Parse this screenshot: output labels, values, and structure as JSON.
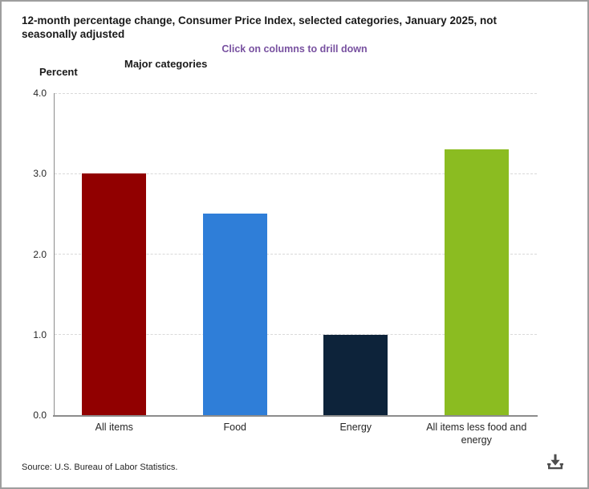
{
  "header": {
    "title": "12-month percentage change, Consumer Price Index, selected categories, January 2025, not seasonally adjusted",
    "subtitle": "Click on columns to drill down"
  },
  "axis": {
    "x_title": "Major categories",
    "y_title": "Percent"
  },
  "footer": {
    "source": "Source: U.S. Bureau of Labor Statistics."
  },
  "icons": {
    "download": "download-icon"
  },
  "colors": {
    "subtitle_text": "#7851a0",
    "axis_line": "#8c8c8c",
    "gridline": "#d9d9d9",
    "title_text": "#1a1a1a",
    "icon": "#4d4d4d",
    "panel_border": "#9e9e9e"
  },
  "chart_data": {
    "type": "bar",
    "title": "12-month percentage change, Consumer Price Index, selected categories, January 2025, not seasonally adjusted",
    "subtitle": "Click on columns to drill down",
    "xlabel": "Major categories",
    "ylabel": "Percent",
    "categories": [
      "All items",
      "Food",
      "Energy",
      "All items less food and energy"
    ],
    "values": [
      3.0,
      2.5,
      1.0,
      3.3
    ],
    "bar_colors": [
      "#910000",
      "#2f7ed8",
      "#0d233a",
      "#8bbc21"
    ],
    "ylim": [
      0.0,
      4.0
    ],
    "ytick_interval": 1.0,
    "ytick_labels": [
      "0.0",
      "1.0",
      "2.0",
      "3.0",
      "4.0"
    ],
    "grid": "horizontal-dashed",
    "legend": "none"
  }
}
